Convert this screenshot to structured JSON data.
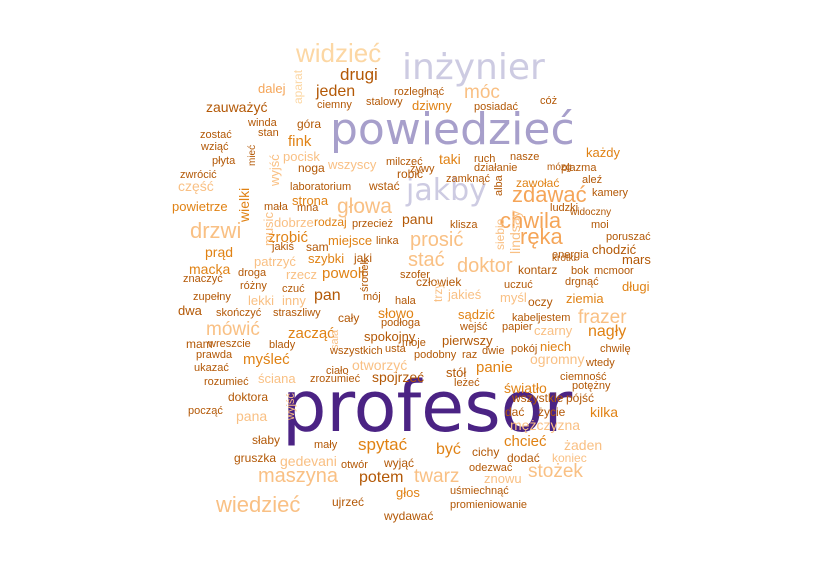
{
  "word_cloud": {
    "words": [
      {
        "text": "profesor",
        "color": "#4b2384"
      },
      {
        "text": "powiedzieć",
        "color": "#a79fcb"
      },
      {
        "text": "inżynier",
        "color": "#cdcbe2"
      },
      {
        "text": "jakby",
        "color": "#cdcbe2"
      },
      {
        "text": "widzieć",
        "color": "#fcd7a4"
      },
      {
        "text": "chwila",
        "color": "#f5a558"
      },
      {
        "text": "zdawać",
        "color": "#f5a558"
      },
      {
        "text": "ręka",
        "color": "#f5a558"
      },
      {
        "text": "drzwi",
        "color": "#f9c084"
      },
      {
        "text": "głowa",
        "color": "#f9c084"
      },
      {
        "text": "prosić",
        "color": "#f9c084"
      },
      {
        "text": "doktor",
        "color": "#f9c084"
      },
      {
        "text": "stać",
        "color": "#f9c084"
      },
      {
        "text": "maszyna",
        "color": "#f9c084"
      },
      {
        "text": "wiedzieć",
        "color": "#f9c084"
      },
      {
        "text": "stożek",
        "color": "#f9c084"
      },
      {
        "text": "frazer",
        "color": "#f9c084"
      },
      {
        "text": "mówić",
        "color": "#f9c084"
      },
      {
        "text": "móc",
        "color": "#f9c084"
      },
      {
        "text": "twarz",
        "color": "#f9c084"
      },
      {
        "text": "drugi",
        "color": "#b35806"
      },
      {
        "text": "jeden",
        "color": "#b35806"
      },
      {
        "text": "pan",
        "color": "#b35806"
      },
      {
        "text": "potem",
        "color": "#b35806"
      },
      {
        "text": "spytać",
        "color": "#e08214"
      },
      {
        "text": "być",
        "color": "#e08214"
      },
      {
        "text": "chcieć",
        "color": "#e08214"
      },
      {
        "text": "nagły",
        "color": "#e08214"
      },
      {
        "text": "panie",
        "color": "#e08214"
      },
      {
        "text": "myśleć",
        "color": "#e08214"
      },
      {
        "text": "zacząć",
        "color": "#e08214"
      },
      {
        "text": "powoli",
        "color": "#e08214"
      },
      {
        "text": "zrobić",
        "color": "#e08214"
      },
      {
        "text": "prąd",
        "color": "#e08214"
      },
      {
        "text": "wielki",
        "color": "#e08214"
      },
      {
        "text": "fink",
        "color": "#e08214"
      },
      {
        "text": "zauważyć",
        "color": "#b35806"
      },
      {
        "text": "mars",
        "color": "#b35806"
      },
      {
        "text": "panu",
        "color": "#b35806"
      },
      {
        "text": "spojrzeć",
        "color": "#b35806"
      },
      {
        "text": "dalej",
        "color": "#f5a558"
      },
      {
        "text": "aparat",
        "color": "#fcd7a4"
      },
      {
        "text": "rozległnąć",
        "color": "#b35806"
      },
      {
        "text": "cóż",
        "color": "#b35806"
      },
      {
        "text": "ciemny",
        "color": "#b35806"
      },
      {
        "text": "stalowy",
        "color": "#b35806"
      },
      {
        "text": "dziwny",
        "color": "#e08214"
      },
      {
        "text": "posiadać",
        "color": "#b35806"
      },
      {
        "text": "winda",
        "color": "#b35806"
      },
      {
        "text": "góra",
        "color": "#b35806"
      },
      {
        "text": "zostać",
        "color": "#b35806"
      },
      {
        "text": "stan",
        "color": "#b35806"
      },
      {
        "text": "wziąć",
        "color": "#b35806"
      },
      {
        "text": "mieć",
        "color": "#b35806"
      },
      {
        "text": "wyjść",
        "color": "#f9c084"
      },
      {
        "text": "pocisk",
        "color": "#f9c084"
      },
      {
        "text": "wszyscy",
        "color": "#f9c084"
      },
      {
        "text": "milczeć",
        "color": "#b35806"
      },
      {
        "text": "taki",
        "color": "#e08214"
      },
      {
        "text": "ruch",
        "color": "#b35806"
      },
      {
        "text": "nasze",
        "color": "#b35806"
      },
      {
        "text": "każdy",
        "color": "#e08214"
      },
      {
        "text": "płyta",
        "color": "#b35806"
      },
      {
        "text": "noga",
        "color": "#b35806"
      },
      {
        "text": "żywy",
        "color": "#b35806"
      },
      {
        "text": "działanie",
        "color": "#b35806"
      },
      {
        "text": "mózg",
        "color": "#b35806"
      },
      {
        "text": "plazma",
        "color": "#b35806"
      },
      {
        "text": "zwrócić",
        "color": "#b35806"
      },
      {
        "text": "robić",
        "color": "#b35806"
      },
      {
        "text": "zamknąć",
        "color": "#b35806"
      },
      {
        "text": "zawołać",
        "color": "#e08214"
      },
      {
        "text": "część",
        "color": "#f9c084"
      },
      {
        "text": "laboratorium",
        "color": "#b35806"
      },
      {
        "text": "wstać",
        "color": "#b35806"
      },
      {
        "text": "alba",
        "color": "#b35806"
      },
      {
        "text": "kamery",
        "color": "#b35806"
      },
      {
        "text": "powietrze",
        "color": "#e08214"
      },
      {
        "text": "mała",
        "color": "#b35806"
      },
      {
        "text": "strona",
        "color": "#e08214"
      },
      {
        "text": "ludzki",
        "color": "#b35806"
      },
      {
        "text": "mna",
        "color": "#b35806"
      },
      {
        "text": "widoczny",
        "color": "#b35806"
      },
      {
        "text": "music",
        "color": "#f9c084"
      },
      {
        "text": "dobrze",
        "color": "#f9c084"
      },
      {
        "text": "rodzaj",
        "color": "#e08214"
      },
      {
        "text": "przecież",
        "color": "#b35806"
      },
      {
        "text": "klisza",
        "color": "#b35806"
      },
      {
        "text": "moi",
        "color": "#b35806"
      },
      {
        "text": "poruszać",
        "color": "#b35806"
      },
      {
        "text": "miejsce",
        "color": "#e08214"
      },
      {
        "text": "linka",
        "color": "#b35806"
      },
      {
        "text": "lindsay",
        "color": "#f9c084"
      },
      {
        "text": "siebie",
        "color": "#f9c084"
      },
      {
        "text": "chodzić",
        "color": "#b35806"
      },
      {
        "text": "jakiś",
        "color": "#b35806"
      },
      {
        "text": "sam",
        "color": "#b35806"
      },
      {
        "text": "krótki",
        "color": "#b35806"
      },
      {
        "text": "energia",
        "color": "#b35806"
      },
      {
        "text": "macka",
        "color": "#e08214"
      },
      {
        "text": "patrzyć",
        "color": "#f9c084"
      },
      {
        "text": "szybki",
        "color": "#e08214"
      },
      {
        "text": "jaki",
        "color": "#b35806"
      },
      {
        "text": "szofer",
        "color": "#b35806"
      },
      {
        "text": "kontarz",
        "color": "#b35806"
      },
      {
        "text": "bok",
        "color": "#b35806"
      },
      {
        "text": "mcmoor",
        "color": "#b35806"
      },
      {
        "text": "znaczyć",
        "color": "#b35806"
      },
      {
        "text": "droga",
        "color": "#b35806"
      },
      {
        "text": "rzecz",
        "color": "#f9c084"
      },
      {
        "text": "człowiek",
        "color": "#b35806"
      },
      {
        "text": "drgnąć",
        "color": "#b35806"
      },
      {
        "text": "różny",
        "color": "#b35806"
      },
      {
        "text": "czuć",
        "color": "#b35806"
      },
      {
        "text": "środek",
        "color": "#b35806"
      },
      {
        "text": "jakieś",
        "color": "#f9c084"
      },
      {
        "text": "uczuć",
        "color": "#b35806"
      },
      {
        "text": "długi",
        "color": "#e08214"
      },
      {
        "text": "zupełny",
        "color": "#b35806"
      },
      {
        "text": "lekki",
        "color": "#f9c084"
      },
      {
        "text": "inny",
        "color": "#f9c084"
      },
      {
        "text": "mój",
        "color": "#b35806"
      },
      {
        "text": "hala",
        "color": "#b35806"
      },
      {
        "text": "trzy",
        "color": "#f9c084"
      },
      {
        "text": "myśl",
        "color": "#f9c084"
      },
      {
        "text": "oczy",
        "color": "#b35806"
      },
      {
        "text": "ziemia",
        "color": "#e08214"
      },
      {
        "text": "dwa",
        "color": "#b35806"
      },
      {
        "text": "skończyć",
        "color": "#b35806"
      },
      {
        "text": "straszliwy",
        "color": "#b35806"
      },
      {
        "text": "cały",
        "color": "#b35806"
      },
      {
        "text": "słowo",
        "color": "#e08214"
      },
      {
        "text": "sądzić",
        "color": "#e08214"
      },
      {
        "text": "kabel",
        "color": "#b35806"
      },
      {
        "text": "jestem",
        "color": "#b35806"
      },
      {
        "text": "podłoga",
        "color": "#b35806"
      },
      {
        "text": "wejść",
        "color": "#b35806"
      },
      {
        "text": "papier",
        "color": "#b35806"
      },
      {
        "text": "czarny",
        "color": "#f9c084"
      },
      {
        "text": "mam",
        "color": "#b35806"
      },
      {
        "text": "wreszcie",
        "color": "#b35806"
      },
      {
        "text": "blady",
        "color": "#b35806"
      },
      {
        "text": "spokojny",
        "color": "#b35806"
      },
      {
        "text": "moje",
        "color": "#b35806"
      },
      {
        "text": "pierwszy",
        "color": "#b35806"
      },
      {
        "text": "niech",
        "color": "#e08214"
      },
      {
        "text": "prawda",
        "color": "#b35806"
      },
      {
        "text": "sala",
        "color": "#f9c084"
      },
      {
        "text": "wszystkich",
        "color": "#b35806"
      },
      {
        "text": "usta",
        "color": "#b35806"
      },
      {
        "text": "dwie",
        "color": "#b35806"
      },
      {
        "text": "pokój",
        "color": "#b35806"
      },
      {
        "text": "chwilę",
        "color": "#b35806"
      },
      {
        "text": "ukazać",
        "color": "#b35806"
      },
      {
        "text": "podobny",
        "color": "#b35806"
      },
      {
        "text": "raz",
        "color": "#b35806"
      },
      {
        "text": "ogromny",
        "color": "#f9c084"
      },
      {
        "text": "wtedy",
        "color": "#b35806"
      },
      {
        "text": "ściana",
        "color": "#f9c084"
      },
      {
        "text": "otworzyć",
        "color": "#f9c084"
      },
      {
        "text": "ciało",
        "color": "#b35806"
      },
      {
        "text": "rozumieć",
        "color": "#b35806"
      },
      {
        "text": "zrozumieć",
        "color": "#b35806"
      },
      {
        "text": "stół",
        "color": "#b35806"
      },
      {
        "text": "ciemność",
        "color": "#b35806"
      },
      {
        "text": "leżeć",
        "color": "#b35806"
      },
      {
        "text": "światło",
        "color": "#e08214"
      },
      {
        "text": "potężny",
        "color": "#b35806"
      },
      {
        "text": "doktora",
        "color": "#b35806"
      },
      {
        "text": "wszystkie",
        "color": "#b35806"
      },
      {
        "text": "pójść",
        "color": "#b35806"
      },
      {
        "text": "począć",
        "color": "#b35806"
      },
      {
        "text": "pana",
        "color": "#f9c084"
      },
      {
        "text": "wyjść",
        "color": "#f9c084"
      },
      {
        "text": "dać",
        "color": "#b35806"
      },
      {
        "text": "życie",
        "color": "#b35806"
      },
      {
        "text": "kilka",
        "color": "#e08214"
      },
      {
        "text": "mężczyzna",
        "color": "#f9c084"
      },
      {
        "text": "słaby",
        "color": "#b35806"
      },
      {
        "text": "mały",
        "color": "#b35806"
      },
      {
        "text": "żaden",
        "color": "#f9c084"
      },
      {
        "text": "gruszka",
        "color": "#b35806"
      },
      {
        "text": "gedevani",
        "color": "#f9c084"
      },
      {
        "text": "cichy",
        "color": "#b35806"
      },
      {
        "text": "dodać",
        "color": "#b35806"
      },
      {
        "text": "koniec",
        "color": "#f9c084"
      },
      {
        "text": "otwór",
        "color": "#b35806"
      },
      {
        "text": "wyjąć",
        "color": "#b35806"
      },
      {
        "text": "odezwać",
        "color": "#b35806"
      },
      {
        "text": "znowu",
        "color": "#f9c084"
      },
      {
        "text": "głos",
        "color": "#e08214"
      },
      {
        "text": "uśmiechnąć",
        "color": "#b35806"
      },
      {
        "text": "ujrzeć",
        "color": "#b35806"
      },
      {
        "text": "promieniowanie",
        "color": "#b35806"
      },
      {
        "text": "wydawać",
        "color": "#b35806"
      },
      {
        "text": "aleź",
        "color": "#b35806"
      }
    ]
  }
}
